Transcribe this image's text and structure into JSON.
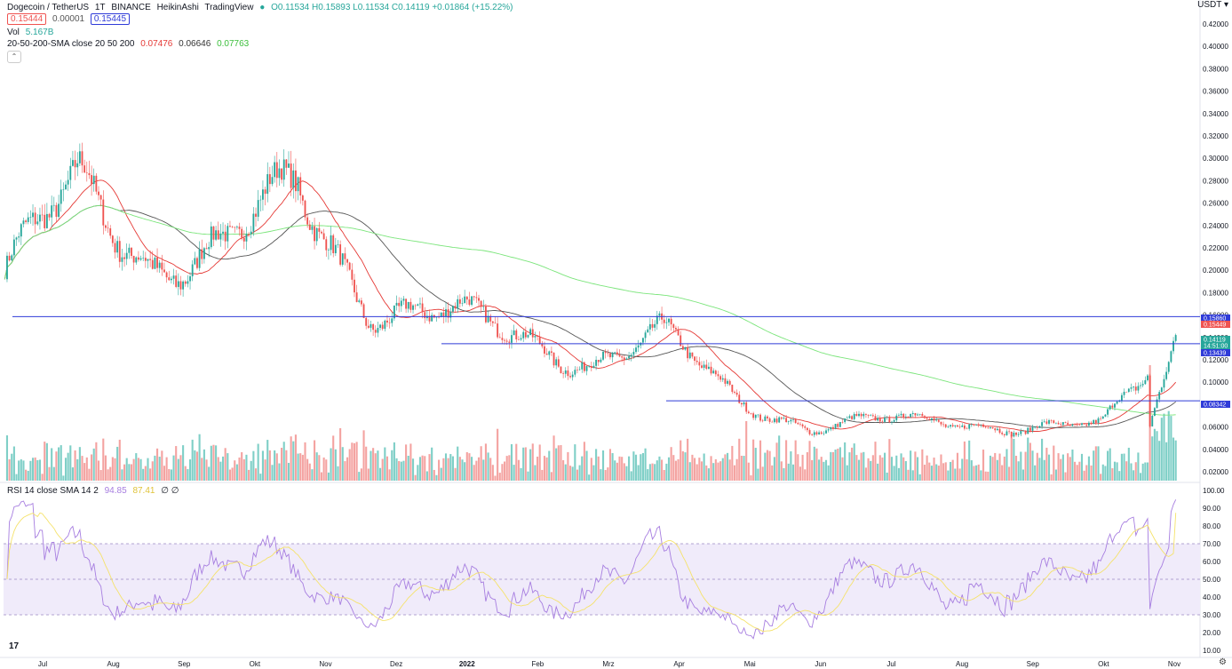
{
  "header": {
    "symbol": "Dogecoin / TetherUS",
    "interval": "1T",
    "exchange": "BINANCE",
    "chart_style": "HeikinAshi",
    "brand": "TradingView",
    "ohlc": "O0.11534 H0.15893 L0.11534 C0.14119 +0.01864 (+15.22%)",
    "bid": "0.15444",
    "spread": "0.00001",
    "ask": "0.15445"
  },
  "indicators": {
    "vol_label": "Vol",
    "vol_value": "5.167B",
    "sma_label": "20-50-200-SMA close 20 50 200",
    "sma20": "0.07476",
    "sma50": "0.06646",
    "sma200": "0.07763",
    "rsi_label": "RSI 14 close SMA 14 2",
    "rsi_value": "94.85",
    "rsi_sma": "87.41",
    "rsi_extra": "∅ ∅"
  },
  "currency": "USDT",
  "colors": {
    "up": "#26a69a",
    "down": "#ef5350",
    "vol_up": "#7fcfc7",
    "vol_down": "#f4a3a1",
    "sma20": "#e53935",
    "sma50": "#555555",
    "sma200": "#7be57b",
    "hline": "#2f3bd8",
    "rsi": "#a77ee0",
    "rsi_sma": "#f5e26a",
    "rsi_band": "#f0ebfa"
  },
  "chart_data": [
    {
      "type": "candlestick",
      "title": "Dogecoin / TetherUS · 1T · BINANCE",
      "y_ticks": [
        "0.42000",
        "0.40000",
        "0.38000",
        "0.36000",
        "0.34000",
        "0.32000",
        "0.30000",
        "0.28000",
        "0.26000",
        "0.24000",
        "0.22000",
        "0.20000",
        "0.18000",
        "0.16000",
        "0.14000",
        "0.12000",
        "0.10000",
        "0.08000",
        "0.06000",
        "0.04000",
        "0.02000"
      ],
      "ylim": [
        0.0135,
        0.4335
      ],
      "x_ticks": [
        "Jul",
        "Aug",
        "Sep",
        "Okt",
        "Nov",
        "Dez",
        "2022",
        "Feb",
        "Mrz",
        "Apr",
        "Mai",
        "Jun",
        "Jul",
        "Aug",
        "Sep",
        "Okt",
        "Nov"
      ],
      "close_approx": {
        "x": [
          "2021-07",
          "2021-08",
          "2021-09",
          "2021-10",
          "2021-11",
          "2021-12",
          "2022-01",
          "2022-02",
          "2022-03",
          "2022-04",
          "2022-05",
          "2022-06",
          "2022-07",
          "2022-08",
          "2022-09",
          "2022-10",
          "2022-11"
        ],
        "y": [
          0.2,
          0.27,
          0.21,
          0.22,
          0.27,
          0.17,
          0.16,
          0.14,
          0.12,
          0.14,
          0.085,
          0.06,
          0.065,
          0.065,
          0.06,
          0.06,
          0.141
        ]
      },
      "horizontal_lines": [
        0.1586,
        0.13439,
        0.08342
      ],
      "price_labels": [
        {
          "value": "0.15860",
          "color": "#2f3bd8"
        },
        {
          "value": "0.15449",
          "color": "#ef5350"
        },
        {
          "value": "0.14119",
          "color": "#26a69a"
        },
        {
          "value": "14:51:00",
          "color": "#26a69a"
        },
        {
          "value": "0.13439",
          "color": "#2f3bd8"
        },
        {
          "value": "0.08342",
          "color": "#2f3bd8"
        }
      ],
      "series": [
        {
          "name": "SMA 20",
          "last": 0.07476
        },
        {
          "name": "SMA 50",
          "last": 0.06646
        },
        {
          "name": "SMA 200",
          "last": 0.07763
        }
      ]
    },
    {
      "type": "line",
      "title": "RSI 14 close SMA 14 2",
      "y_ticks": [
        "100.00",
        "90.00",
        "80.00",
        "70.00",
        "60.00",
        "50.00",
        "40.00",
        "30.00",
        "20.00",
        "10.00"
      ],
      "ylim": [
        5,
        100
      ],
      "bands": [
        30,
        50,
        70
      ],
      "last": 94.85,
      "sma_last": 87.41
    }
  ]
}
